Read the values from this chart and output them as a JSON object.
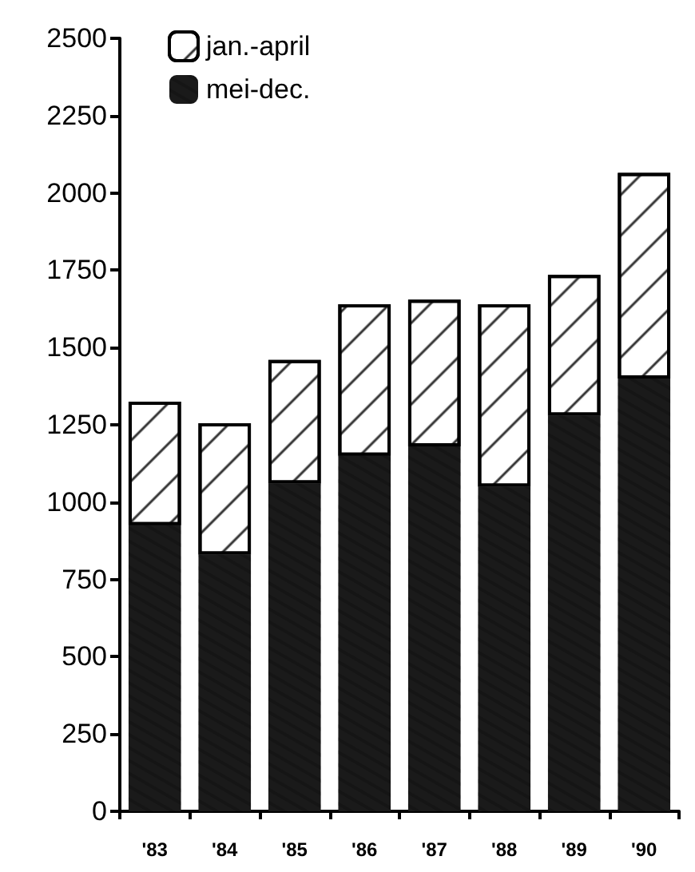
{
  "chart_data": {
    "type": "bar",
    "stacked": true,
    "categories": [
      "'83",
      "'84",
      "'85",
      "'86",
      "'87",
      "'88",
      "'89",
      "'90"
    ],
    "series": [
      {
        "name": "mei-dec.",
        "color": "#1a1a1a",
        "values": [
          925,
          830,
          1060,
          1150,
          1180,
          1050,
          1280,
          1400
        ]
      },
      {
        "name": "jan.-april",
        "color": "#ffffff",
        "values": [
          400,
          425,
          400,
          490,
          475,
          590,
          455,
          665
        ]
      }
    ],
    "ylim": [
      0,
      2500
    ],
    "yticks": [
      0,
      250,
      500,
      750,
      1000,
      1250,
      1500,
      1750,
      2000,
      2250,
      2500
    ],
    "grid": false,
    "legend": "top left"
  }
}
